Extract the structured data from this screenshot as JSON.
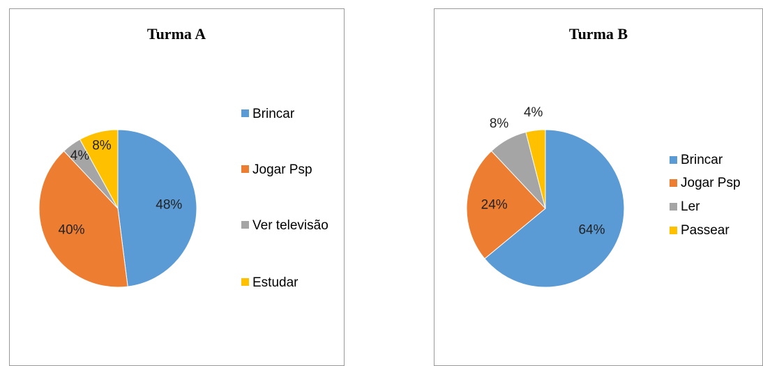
{
  "chart_data": [
    {
      "type": "pie",
      "title": "Turma A",
      "categories": [
        "Brincar",
        "Jogar Psp",
        "Ver televisão",
        "Estudar"
      ],
      "values": [
        48,
        40,
        4,
        8
      ],
      "value_labels": [
        "48%",
        "40%",
        "4%",
        "8%"
      ],
      "colors": [
        "#5B9BD5",
        "#ED7D31",
        "#A5A5A5",
        "#FFC000"
      ],
      "legend": "right"
    },
    {
      "type": "pie",
      "title": "Turma B",
      "categories": [
        "Brincar",
        "Jogar Psp",
        "Ler",
        "Passear"
      ],
      "values": [
        64,
        24,
        8,
        4
      ],
      "value_labels": [
        "64%",
        "24%",
        "8%",
        "4%"
      ],
      "colors": [
        "#5B9BD5",
        "#ED7D31",
        "#A5A5A5",
        "#FFC000"
      ],
      "legend": "right"
    }
  ]
}
